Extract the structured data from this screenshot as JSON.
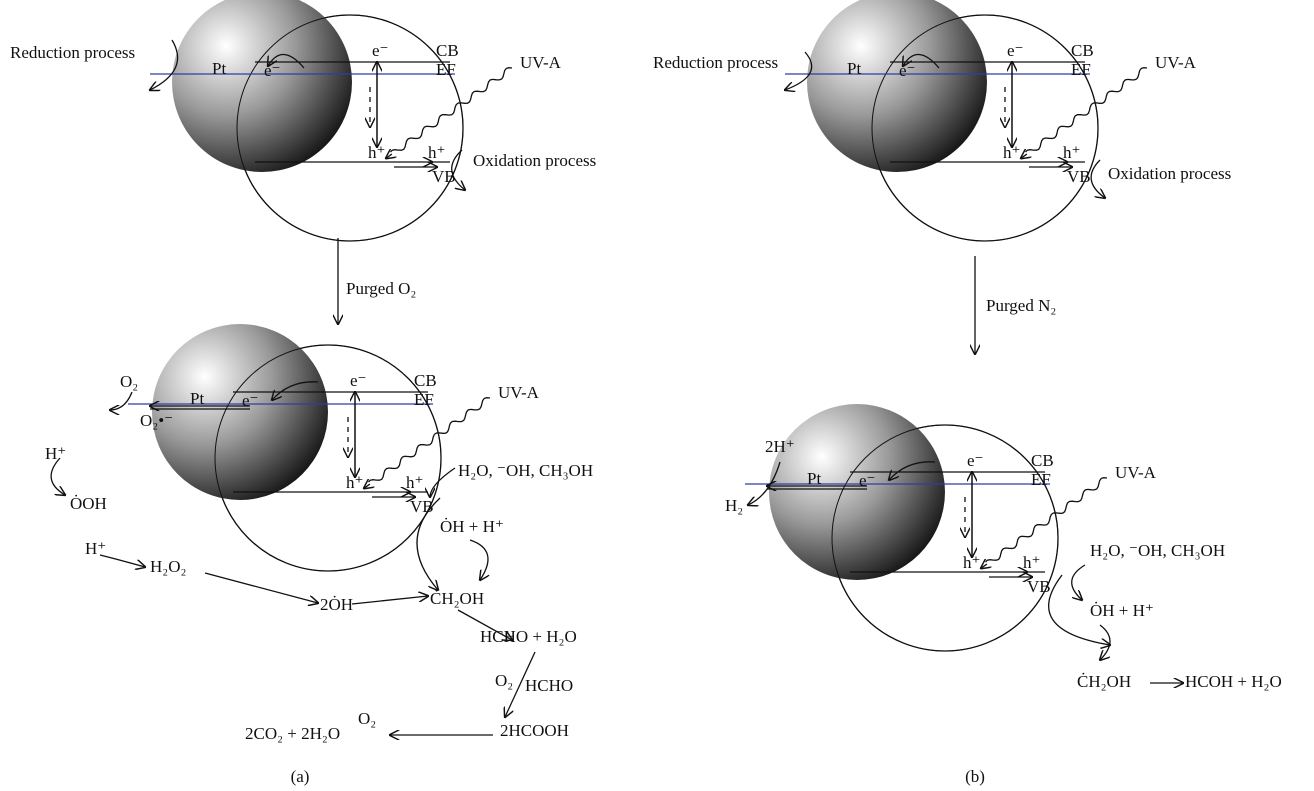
{
  "panels": [
    {
      "caption": "(a)",
      "top": {
        "reduction": "Reduction process",
        "metal": "Pt",
        "electrons": [
          "e⁻",
          "e⁻"
        ],
        "cb": "CB",
        "ef": "EF",
        "light": "UV-A",
        "holes": [
          "h⁺",
          "h⁺"
        ],
        "vb": "VB",
        "oxidation": "Oxidation process"
      },
      "purge": "Purged O₂",
      "bottom": {
        "metal": "Pt",
        "electrons": [
          "e⁻",
          "e⁻"
        ],
        "cb": "CB",
        "ef": "EF",
        "light": "UV-A",
        "holes": [
          "h⁺",
          "h⁺"
        ],
        "vb": "VB",
        "species": [
          "O₂",
          "O₂•⁻",
          "H⁺",
          "ȮOH",
          "H⁺",
          "H₂O₂",
          "2ȮH",
          "ĊH₂OH",
          "H₂O, ⁻OH, CH₃OH",
          "ȮH + H⁺",
          "HCHO + H₂O",
          "O₂",
          "HCHO",
          "2HCOOH",
          "O₂",
          "2CO₂ + 2H₂O"
        ]
      }
    },
    {
      "caption": "(b)",
      "top": {
        "reduction": "Reduction process",
        "metal": "Pt",
        "electrons": [
          "e⁻",
          "e⁻"
        ],
        "cb": "CB",
        "ef": "EF",
        "light": "UV-A",
        "holes": [
          "h⁺",
          "h⁺"
        ],
        "vb": "VB",
        "oxidation": "Oxidation process"
      },
      "purge": "Purged N₂",
      "bottom": {
        "metal": "Pt",
        "electrons": [
          "e⁻",
          "e⁻"
        ],
        "cb": "CB",
        "ef": "EF",
        "light": "UV-A",
        "holes": [
          "h⁺",
          "h⁺"
        ],
        "vb": "VB",
        "species": [
          "2H⁺",
          "H₂",
          "H₂O, ⁻OH, CH₃OH",
          "ȮH + H⁺",
          "ĊH₂OH",
          "HCOH + H₂O"
        ]
      }
    }
  ]
}
